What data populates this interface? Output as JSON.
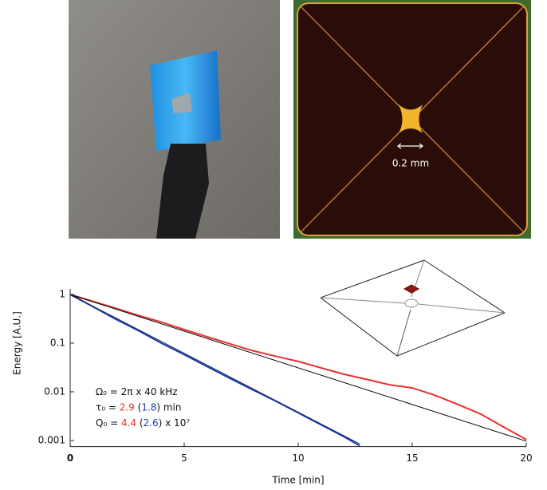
{
  "images": {
    "scale_bar_label": "0.2 mm"
  },
  "chart_data": {
    "type": "line",
    "xlabel": "Time [min]",
    "ylabel": "Energy [A.U.]",
    "xlim": [
      0,
      20
    ],
    "xticks": [
      0,
      5,
      10,
      15,
      20
    ],
    "ylim": [
      0.00075,
      1.3
    ],
    "yticks": [
      1,
      0.1,
      0.01,
      0.001
    ],
    "log_y": true,
    "series": [
      {
        "color": "#e8322d",
        "x": [
          0,
          1,
          2,
          3,
          4,
          5,
          6,
          7,
          8,
          9,
          10,
          11,
          12,
          13,
          14,
          15,
          16,
          17,
          18,
          19,
          20
        ],
        "values": [
          1,
          0.72,
          0.52,
          0.37,
          0.27,
          0.19,
          0.135,
          0.097,
          0.07,
          0.054,
          0.042,
          0.031,
          0.023,
          0.018,
          0.014,
          0.012,
          0.0085,
          0.0055,
          0.0035,
          0.0019,
          0.00105
        ]
      },
      {
        "color": "#1a3fb0",
        "x": [
          0,
          1,
          2,
          3,
          4,
          5,
          6,
          7,
          8,
          9,
          10,
          11,
          12,
          12.7
        ],
        "values": [
          1,
          0.56,
          0.31,
          0.18,
          0.1,
          0.058,
          0.033,
          0.019,
          0.011,
          0.0065,
          0.0037,
          0.0021,
          0.0012,
          0.00078
        ]
      },
      {
        "color": "#000000",
        "x": [
          0,
          20
        ],
        "values": [
          1,
          0.00097
        ]
      },
      {
        "color": "#1a2060",
        "x": [
          0,
          12.7
        ],
        "values": [
          1,
          0.00085
        ]
      }
    ],
    "annotations": [
      [
        {
          "text": "Ω₀ = 2π x 40 kHz",
          "color": "#111111"
        }
      ],
      [
        {
          "text": "τ₀ = ",
          "color": "#111111"
        },
        {
          "text": "2.9",
          "color": "#e8322d"
        },
        {
          "text": " (",
          "color": "#111111"
        },
        {
          "text": "1.8",
          "color": "#1a3fb0"
        },
        {
          "text": ") min",
          "color": "#111111"
        }
      ],
      [
        {
          "text": "Q₀ = ",
          "color": "#111111"
        },
        {
          "text": "4.4",
          "color": "#e8322d"
        },
        {
          "text": " (",
          "color": "#111111"
        },
        {
          "text": "2.6",
          "color": "#1a3fb0"
        },
        {
          "text": ") x 10⁷",
          "color": "#111111"
        }
      ]
    ]
  }
}
